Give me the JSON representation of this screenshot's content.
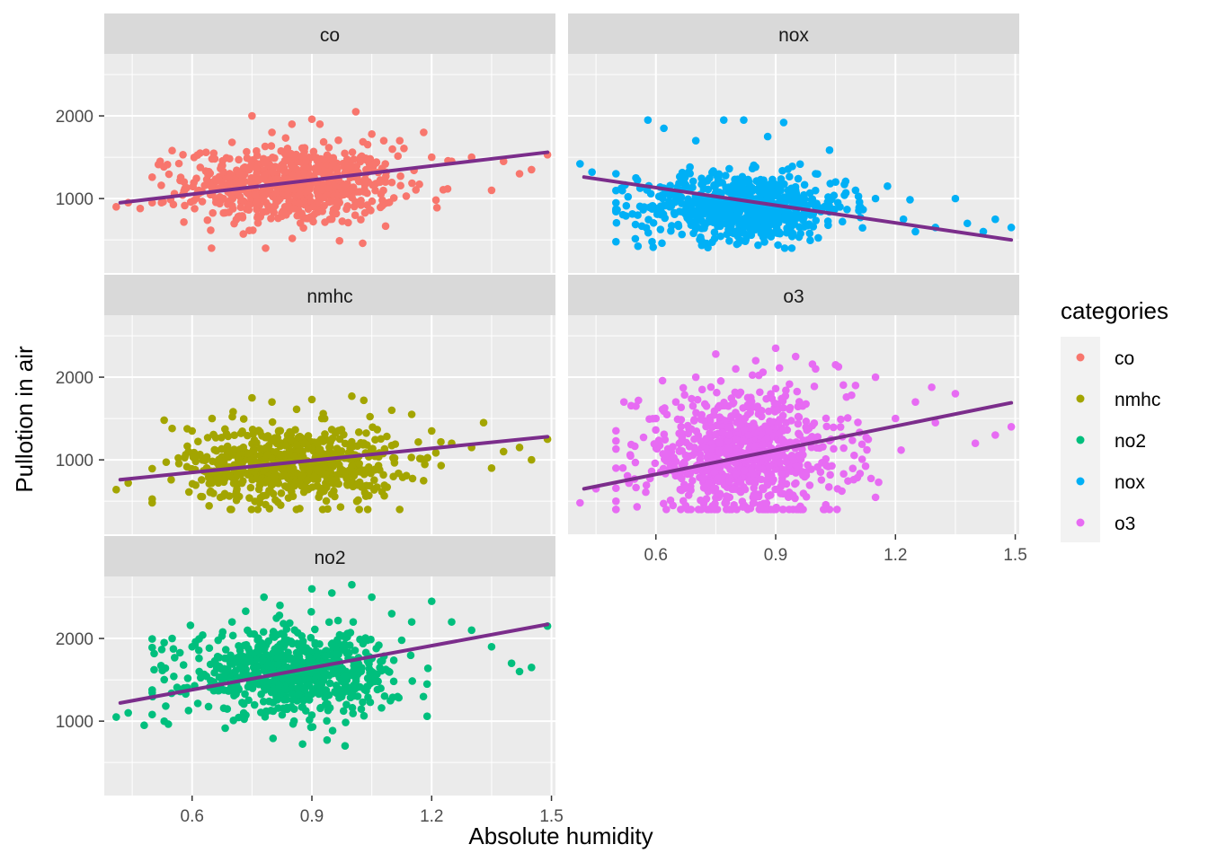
{
  "chart_data": {
    "type": "scatter",
    "xlabel": "Absolute humidity",
    "ylabel": "Pullotion in air",
    "xlim": [
      0.38,
      1.51
    ],
    "ylim": [
      100,
      2750
    ],
    "x_ticks": [
      "0.6",
      "0.9",
      "1.2",
      "1.5"
    ],
    "x_tick_values": [
      0.6,
      0.9,
      1.2,
      1.5
    ],
    "y_ticks": [
      "1000",
      "2000"
    ],
    "y_tick_values": [
      1000,
      2000
    ],
    "grid": true,
    "legend": {
      "title": "categories",
      "placement": "right",
      "entries": [
        {
          "label": "co",
          "color": "#F8766D"
        },
        {
          "label": "nmhc",
          "color": "#A3A500"
        },
        {
          "label": "no2",
          "color": "#00BF7D"
        },
        {
          "label": "nox",
          "color": "#00B0F6"
        },
        {
          "label": "o3",
          "color": "#E76BF3"
        }
      ]
    },
    "trend_color": "#7B2D8B",
    "panels": [
      {
        "label": "co",
        "color": "#F8766D",
        "trend": {
          "x": [
            0.42,
            1.49
          ],
          "y": [
            950,
            1560
          ]
        },
        "cloud": {
          "center_x": 0.85,
          "center_y": 1150,
          "spread_x": 0.13,
          "spread_y": 230,
          "count": 700
        },
        "points": [
          [
            0.41,
            900
          ],
          [
            0.44,
            950
          ],
          [
            0.47,
            880
          ],
          [
            0.5,
            950
          ],
          [
            0.52,
            1450
          ],
          [
            0.55,
            1580
          ],
          [
            0.58,
            1200
          ],
          [
            0.62,
            1550
          ],
          [
            0.65,
            1480
          ],
          [
            0.7,
            1680
          ],
          [
            0.75,
            2000
          ],
          [
            0.8,
            1800
          ],
          [
            0.85,
            1900
          ],
          [
            0.9,
            1960
          ],
          [
            0.92,
            1900
          ],
          [
            1.01,
            2050
          ],
          [
            1.05,
            1780
          ],
          [
            1.08,
            1700
          ],
          [
            1.12,
            1700
          ],
          [
            1.18,
            1800
          ],
          [
            1.2,
            1500
          ],
          [
            1.25,
            1450
          ],
          [
            1.3,
            1500
          ],
          [
            1.35,
            1100
          ],
          [
            1.38,
            1450
          ],
          [
            1.42,
            1300
          ],
          [
            1.45,
            1350
          ],
          [
            1.49,
            1530
          ]
        ]
      },
      {
        "label": "nox",
        "color": "#00B0F6",
        "trend": {
          "x": [
            0.42,
            1.49
          ],
          "y": [
            1260,
            500
          ]
        },
        "cloud": {
          "center_x": 0.82,
          "center_y": 900,
          "spread_x": 0.13,
          "spread_y": 200,
          "count": 700
        },
        "points": [
          [
            0.41,
            1420
          ],
          [
            0.44,
            1320
          ],
          [
            0.5,
            1300
          ],
          [
            0.55,
            1250
          ],
          [
            0.58,
            1950
          ],
          [
            0.62,
            1850
          ],
          [
            0.7,
            1700
          ],
          [
            0.77,
            1950
          ],
          [
            0.82,
            1950
          ],
          [
            0.88,
            1750
          ],
          [
            0.92,
            1920
          ],
          [
            1.0,
            1300
          ],
          [
            1.05,
            1200
          ],
          [
            1.1,
            1100
          ],
          [
            1.15,
            1000
          ],
          [
            1.18,
            1150
          ],
          [
            1.22,
            750
          ],
          [
            1.25,
            600
          ],
          [
            1.3,
            650
          ],
          [
            1.35,
            1000
          ],
          [
            1.38,
            700
          ],
          [
            1.42,
            600
          ],
          [
            1.45,
            750
          ],
          [
            1.49,
            650
          ]
        ]
      },
      {
        "label": "nmhc",
        "color": "#A3A500",
        "trend": {
          "x": [
            0.42,
            1.49
          ],
          "y": [
            760,
            1280
          ]
        },
        "cloud": {
          "center_x": 0.85,
          "center_y": 950,
          "spread_x": 0.13,
          "spread_y": 230,
          "count": 700
        },
        "points": [
          [
            0.41,
            640
          ],
          [
            0.44,
            720
          ],
          [
            0.5,
            480
          ],
          [
            0.53,
            1480
          ],
          [
            0.55,
            1380
          ],
          [
            0.6,
            1350
          ],
          [
            0.65,
            1500
          ],
          [
            0.75,
            1750
          ],
          [
            0.8,
            1700
          ],
          [
            0.9,
            1730
          ],
          [
            1.0,
            1770
          ],
          [
            1.03,
            1720
          ],
          [
            1.1,
            1600
          ],
          [
            1.15,
            1550
          ],
          [
            1.2,
            1350
          ],
          [
            1.25,
            1200
          ],
          [
            1.3,
            1150
          ],
          [
            1.33,
            1450
          ],
          [
            1.35,
            900
          ],
          [
            1.38,
            1100
          ],
          [
            1.42,
            1150
          ],
          [
            1.45,
            1000
          ],
          [
            1.49,
            1250
          ]
        ]
      },
      {
        "label": "o3",
        "color": "#E76BF3",
        "trend": {
          "x": [
            0.42,
            1.49
          ],
          "y": [
            650,
            1690
          ]
        },
        "cloud": {
          "center_x": 0.82,
          "center_y": 1050,
          "spread_x": 0.13,
          "spread_y": 380,
          "count": 800
        },
        "points": [
          [
            0.41,
            480
          ],
          [
            0.45,
            650
          ],
          [
            0.5,
            500
          ],
          [
            0.52,
            1700
          ],
          [
            0.55,
            1650
          ],
          [
            0.6,
            1500
          ],
          [
            0.65,
            1700
          ],
          [
            0.7,
            2000
          ],
          [
            0.75,
            2280
          ],
          [
            0.8,
            2100
          ],
          [
            0.85,
            2200
          ],
          [
            0.9,
            2350
          ],
          [
            0.95,
            2250
          ],
          [
            1.0,
            2100
          ],
          [
            1.05,
            2150
          ],
          [
            1.1,
            1900
          ],
          [
            1.15,
            2000
          ],
          [
            1.2,
            1500
          ],
          [
            1.25,
            1700
          ],
          [
            1.3,
            1450
          ],
          [
            1.35,
            1800
          ],
          [
            1.4,
            1200
          ],
          [
            1.45,
            1300
          ],
          [
            1.49,
            1400
          ]
        ]
      },
      {
        "label": "no2",
        "color": "#00BF7D",
        "trend": {
          "x": [
            0.42,
            1.49
          ],
          "y": [
            1220,
            2170
          ]
        },
        "cloud": {
          "center_x": 0.85,
          "center_y": 1580,
          "spread_x": 0.13,
          "spread_y": 250,
          "count": 700
        },
        "points": [
          [
            0.41,
            1050
          ],
          [
            0.44,
            1100
          ],
          [
            0.48,
            950
          ],
          [
            0.5,
            1080
          ],
          [
            0.53,
            1950
          ],
          [
            0.55,
            2000
          ],
          [
            0.6,
            1900
          ],
          [
            0.7,
            2200
          ],
          [
            0.78,
            2500
          ],
          [
            0.82,
            2400
          ],
          [
            0.9,
            2600
          ],
          [
            0.95,
            2550
          ],
          [
            1.0,
            2650
          ],
          [
            1.05,
            2500
          ],
          [
            1.1,
            2300
          ],
          [
            1.15,
            2200
          ],
          [
            1.2,
            2450
          ],
          [
            1.25,
            2200
          ],
          [
            1.3,
            2100
          ],
          [
            1.35,
            1900
          ],
          [
            1.4,
            1700
          ],
          [
            1.42,
            1600
          ],
          [
            1.45,
            1650
          ],
          [
            1.49,
            2150
          ]
        ]
      }
    ]
  }
}
